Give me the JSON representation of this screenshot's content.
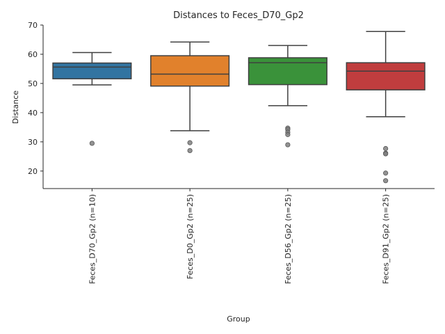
{
  "chart_data": {
    "type": "box",
    "title": "Distances to Feces_D70_Gp2",
    "xlabel": "Group",
    "ylabel": "Distance",
    "ylim": [
      14,
      70
    ],
    "yticks": [
      20,
      30,
      40,
      50,
      60,
      70
    ],
    "grid": false,
    "categories": [
      "Feces_D70_Gp2 (n=10)",
      "Feces_D0_Gp2 (n=25)",
      "Feces_D56_Gp2 (n=25)",
      "Feces_D91_Gp2 (n=25)"
    ],
    "boxes": [
      {
        "color": "#3274a1",
        "whislo": 49.5,
        "q1": 51.6,
        "med": 55.6,
        "q3": 57.0,
        "whishi": 60.6,
        "fliers": [
          29.5
        ]
      },
      {
        "color": "#e1812c",
        "whislo": 33.8,
        "q1": 49.1,
        "med": 53.2,
        "q3": 59.5,
        "whishi": 64.2,
        "fliers": [
          29.7,
          27.0
        ]
      },
      {
        "color": "#3a923a",
        "whislo": 42.4,
        "q1": 49.6,
        "med": 57.1,
        "q3": 58.8,
        "whishi": 63.0,
        "fliers": [
          34.7,
          34.2,
          33.3,
          32.5,
          29.0
        ]
      },
      {
        "color": "#c03d3e",
        "whislo": 38.6,
        "q1": 47.8,
        "med": 54.2,
        "q3": 57.1,
        "whishi": 67.8,
        "fliers": [
          27.7,
          26.1,
          25.9,
          19.3,
          16.7
        ]
      }
    ]
  }
}
